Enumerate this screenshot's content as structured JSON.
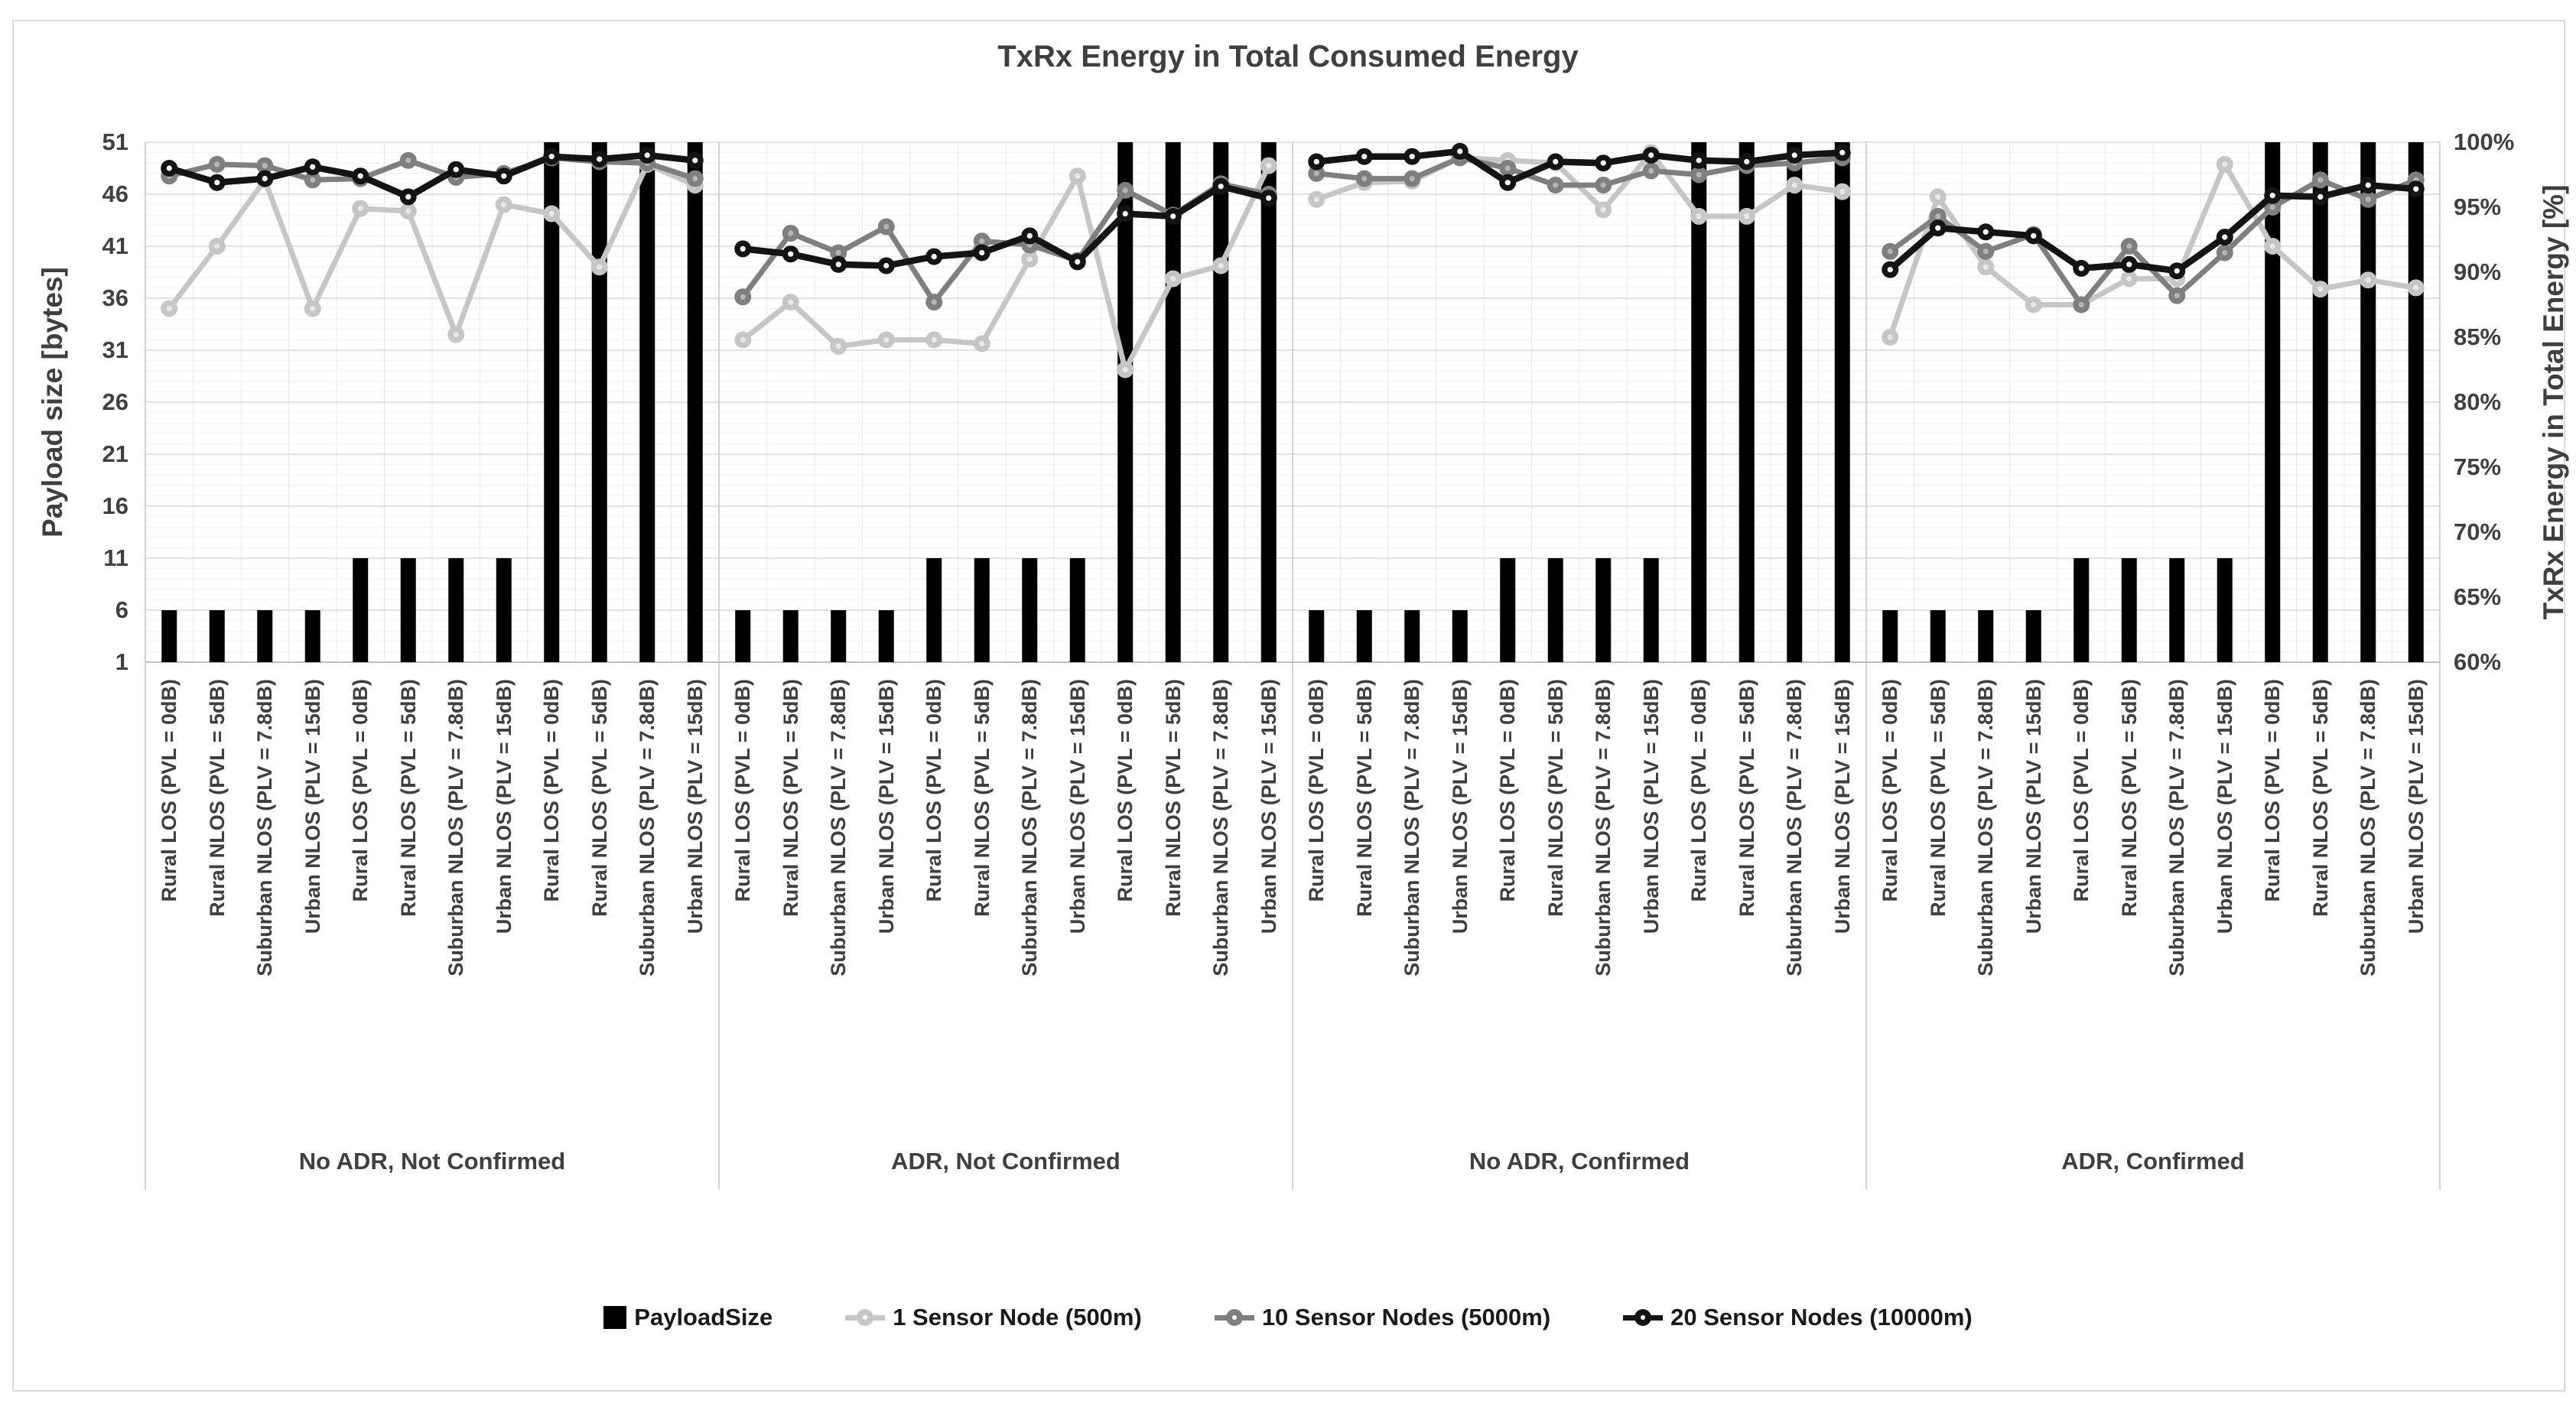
{
  "chart_data": {
    "type": "combo-bar-line",
    "title": "TxRx Energy in Total Consumed Energy",
    "left_axis": {
      "title": "Payload size [bytes]",
      "ticks": [
        "51",
        "46",
        "41",
        "36",
        "31",
        "26",
        "21",
        "16",
        "11",
        "6",
        "1"
      ],
      "min": 1,
      "max": 51,
      "major_unit": 5
    },
    "right_axis": {
      "title": "TxRx Energy in Total Energy [%]",
      "ticks": [
        "100%",
        "95%",
        "90%",
        "85%",
        "80%",
        "75%",
        "70%",
        "65%",
        "60%"
      ],
      "min": 60,
      "max": 100,
      "major_unit": 5
    },
    "categories": [
      "Rural LOS (PVL = 0dB)",
      "Rural NLOS (PVL = 5dB)",
      "Suburban NLOS (PLV = 7.8dB)",
      "Urban NLOS (PLV = 15dB)",
      "Rural LOS (PVL = 0dB)",
      "Rural NLOS (PVL = 5dB)",
      "Suburban NLOS (PLV = 7.8dB)",
      "Urban NLOS (PLV = 15dB)",
      "Rural LOS (PVL = 0dB)",
      "Rural NLOS (PVL = 5dB)",
      "Suburban NLOS (PLV = 7.8dB)",
      "Urban NLOS (PLV = 15dB)"
    ],
    "groups": [
      {
        "label": "No ADR, Not Confirmed",
        "payload_bytes": [
          6,
          6,
          6,
          6,
          11,
          11,
          11,
          11,
          51,
          51,
          51,
          51
        ],
        "pct_1_node": [
          87.2,
          92.0,
          97.1,
          87.2,
          94.9,
          94.7,
          85.2,
          95.2,
          94.5,
          90.4,
          98.3,
          96.7
        ],
        "pct_10_nodes": [
          97.4,
          98.3,
          98.2,
          97.1,
          97.2,
          98.6,
          97.3,
          97.6,
          98.8,
          98.5,
          98.4,
          97.2
        ],
        "pct_20_nodes": [
          98.0,
          96.9,
          97.2,
          98.1,
          97.4,
          95.8,
          97.9,
          97.4,
          98.9,
          98.7,
          99.0,
          98.6
        ]
      },
      {
        "label": "ADR, Not Confirmed",
        "payload_bytes": [
          6,
          6,
          6,
          6,
          11,
          11,
          11,
          11,
          51,
          51,
          51,
          51
        ],
        "pct_1_node": [
          84.8,
          87.7,
          84.3,
          84.8,
          84.8,
          84.5,
          91.0,
          97.4,
          82.5,
          89.5,
          90.5,
          98.2
        ],
        "pct_10_nodes": [
          88.1,
          93.0,
          91.5,
          93.5,
          87.7,
          92.4,
          92.1,
          90.9,
          96.3,
          94.4,
          96.8,
          96.0
        ],
        "pct_20_nodes": [
          91.8,
          91.4,
          90.6,
          90.5,
          91.2,
          91.5,
          92.8,
          90.8,
          94.5,
          94.3,
          96.6,
          95.7
        ]
      },
      {
        "label": "No ADR, Confirmed",
        "payload_bytes": [
          6,
          6,
          6,
          6,
          11,
          11,
          11,
          11,
          51,
          51,
          51,
          51
        ],
        "pct_1_node": [
          95.6,
          96.9,
          97.0,
          98.8,
          98.6,
          98.4,
          94.8,
          99.2,
          94.3,
          94.3,
          96.7,
          96.2
        ],
        "pct_10_nodes": [
          97.6,
          97.2,
          97.2,
          98.8,
          98.0,
          96.7,
          96.7,
          97.8,
          97.5,
          98.2,
          98.4,
          98.8
        ],
        "pct_20_nodes": [
          98.5,
          98.9,
          98.9,
          99.3,
          96.9,
          98.5,
          98.4,
          99.0,
          98.6,
          98.5,
          99.0,
          99.2
        ]
      },
      {
        "label": "ADR, Confirmed",
        "payload_bytes": [
          6,
          6,
          6,
          6,
          11,
          11,
          11,
          11,
          51,
          51,
          51,
          51
        ],
        "pct_1_node": [
          85.0,
          95.8,
          90.4,
          87.5,
          87.5,
          89.5,
          89.5,
          98.3,
          92.0,
          88.7,
          89.4,
          88.8
        ],
        "pct_10_nodes": [
          91.6,
          94.3,
          91.6,
          92.9,
          87.5,
          92.0,
          88.2,
          91.5,
          95.0,
          97.1,
          95.6,
          97.1
        ],
        "pct_20_nodes": [
          90.2,
          93.4,
          93.1,
          92.8,
          90.3,
          90.6,
          90.1,
          92.7,
          95.9,
          95.8,
          96.7,
          96.4
        ]
      }
    ],
    "legend": [
      {
        "key": "payload",
        "label": "PayloadSize",
        "type": "bar"
      },
      {
        "key": "n1",
        "label": "1 Sensor Node (500m)",
        "type": "line"
      },
      {
        "key": "n10",
        "label": "10 Sensor Nodes (5000m)",
        "type": "line"
      },
      {
        "key": "n20",
        "label": "20 Sensor Nodes (10000m)",
        "type": "line"
      }
    ],
    "colors": {
      "payload_bar": "#000000",
      "n1": "#c6c6c6",
      "n10": "#7f7f7f",
      "n20": "#141414",
      "grid_major": "#d7d7d7",
      "grid_minor": "#f1f1f1",
      "grid_vertical": "#e9e9e9",
      "panel_border": "#c9c9c9",
      "text": "#3f3f3f"
    },
    "legend_position": "bottom",
    "grid": "on"
  }
}
